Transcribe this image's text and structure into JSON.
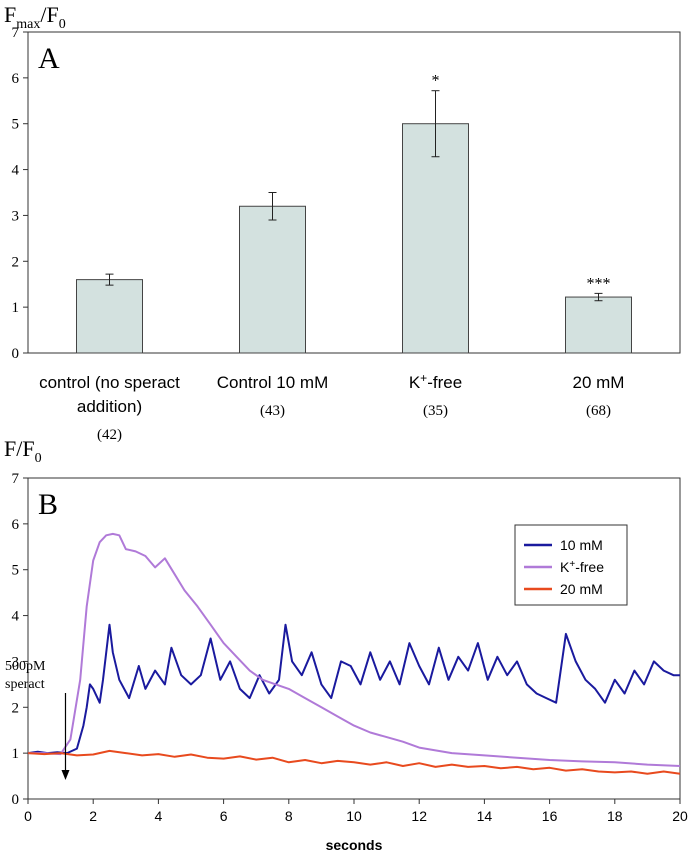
{
  "panel_a": {
    "ylabel_main": "F",
    "ylabel_sub": "max",
    "ylabel_rest": "/F",
    "ylabel_zero": "0",
    "panel_label": "A"
  },
  "panel_b": {
    "ylabel_main": "F/F",
    "ylabel_zero": "0",
    "panel_label": "B",
    "annotation_line1": "500pM",
    "annotation_line2": "speract"
  },
  "chart_data": [
    {
      "type": "bar",
      "panel": "A",
      "categories": [
        {
          "line1": "control (no speract",
          "line2": "addition)",
          "n": "(42)"
        },
        {
          "line1": "Control 10 mM",
          "line2": "",
          "n": "(43)"
        },
        {
          "line1": "K",
          "sup": "+",
          "rest": "-free",
          "line2": "",
          "n": "(35)"
        },
        {
          "line1": "20 mM",
          "line2": "",
          "n": "(68)"
        }
      ],
      "values": [
        1.6,
        3.2,
        5.0,
        1.22
      ],
      "errors": [
        0.12,
        0.3,
        0.72,
        0.08
      ],
      "significance": [
        "",
        "",
        "*",
        "***"
      ],
      "ylim": [
        0,
        7
      ],
      "yticks": [
        "0",
        "1",
        "2",
        "3",
        "4",
        "5",
        "6",
        "7"
      ],
      "bar_color": "#d3e1df"
    },
    {
      "type": "line",
      "panel": "B",
      "xlabel": "seconds",
      "xlim": [
        0,
        20
      ],
      "ylim": [
        0,
        7
      ],
      "xticks": [
        "0",
        "2",
        "4",
        "6",
        "8",
        "10",
        "12",
        "14",
        "16",
        "18",
        "20"
      ],
      "yticks": [
        "0",
        "1",
        "2",
        "3",
        "4",
        "5",
        "6",
        "7"
      ],
      "legend_position": "top-right",
      "annotation_x": 1.15,
      "series": [
        {
          "name": "10 mM",
          "color": "#1a1a9e",
          "x": [
            0,
            0.3,
            0.6,
            0.9,
            1.2,
            1.5,
            1.7,
            1.8,
            1.9,
            2.0,
            2.2,
            2.3,
            2.5,
            2.6,
            2.8,
            3.1,
            3.4,
            3.6,
            3.9,
            4.2,
            4.4,
            4.7,
            5.0,
            5.3,
            5.6,
            5.9,
            6.2,
            6.5,
            6.8,
            7.1,
            7.4,
            7.7,
            7.9,
            8.1,
            8.4,
            8.7,
            9.0,
            9.3,
            9.6,
            9.9,
            10.2,
            10.5,
            10.8,
            11.1,
            11.4,
            11.7,
            12.0,
            12.3,
            12.6,
            12.9,
            13.2,
            13.5,
            13.8,
            14.1,
            14.4,
            14.7,
            15.0,
            15.3,
            15.6,
            15.9,
            16.2,
            16.5,
            16.8,
            17.1,
            17.4,
            17.7,
            18.0,
            18.3,
            18.6,
            18.9,
            19.2,
            19.5,
            19.8,
            20.0
          ],
          "values": [
            1.0,
            1.03,
            1.0,
            1.02,
            1.0,
            1.1,
            1.6,
            2.0,
            2.5,
            2.4,
            2.1,
            2.6,
            3.8,
            3.2,
            2.6,
            2.2,
            2.9,
            2.4,
            2.8,
            2.5,
            3.3,
            2.7,
            2.5,
            2.7,
            3.5,
            2.6,
            3.0,
            2.4,
            2.2,
            2.7,
            2.3,
            2.6,
            3.8,
            3.0,
            2.7,
            3.2,
            2.5,
            2.2,
            3.0,
            2.9,
            2.5,
            3.2,
            2.6,
            3.0,
            2.5,
            3.4,
            2.9,
            2.5,
            3.3,
            2.6,
            3.1,
            2.8,
            3.4,
            2.6,
            3.1,
            2.7,
            3.0,
            2.5,
            2.3,
            2.2,
            2.1,
            3.6,
            3.0,
            2.6,
            2.4,
            2.1,
            2.6,
            2.3,
            2.8,
            2.5,
            3.0,
            2.8,
            2.7,
            2.7
          ]
        },
        {
          "name": "K+-free",
          "color": "#b07ad8",
          "x": [
            0,
            0.5,
            1.0,
            1.3,
            1.6,
            1.8,
            2.0,
            2.2,
            2.4,
            2.6,
            2.8,
            3.0,
            3.3,
            3.6,
            3.9,
            4.2,
            4.5,
            4.8,
            5.2,
            5.6,
            6.0,
            6.4,
            6.8,
            7.2,
            7.6,
            8.0,
            8.5,
            9.0,
            9.5,
            10.0,
            10.5,
            11.0,
            11.5,
            12.0,
            13.0,
            14.0,
            15.0,
            16.0,
            17.0,
            18.0,
            19.0,
            20.0
          ],
          "values": [
            1.0,
            1.0,
            0.98,
            1.3,
            2.6,
            4.2,
            5.2,
            5.6,
            5.75,
            5.78,
            5.75,
            5.45,
            5.4,
            5.3,
            5.05,
            5.25,
            4.9,
            4.55,
            4.2,
            3.8,
            3.4,
            3.1,
            2.8,
            2.6,
            2.5,
            2.4,
            2.2,
            2.0,
            1.8,
            1.6,
            1.45,
            1.35,
            1.25,
            1.12,
            1.0,
            0.95,
            0.9,
            0.85,
            0.82,
            0.8,
            0.75,
            0.72
          ]
        },
        {
          "name": "20 mM",
          "color": "#e84a1e",
          "x": [
            0,
            0.5,
            1.0,
            1.5,
            2.0,
            2.5,
            3.0,
            3.5,
            4.0,
            4.5,
            5.0,
            5.5,
            6.0,
            6.5,
            7.0,
            7.5,
            8.0,
            8.5,
            9.0,
            9.5,
            10.0,
            10.5,
            11.0,
            11.5,
            12.0,
            12.5,
            13.0,
            13.5,
            14.0,
            14.5,
            15.0,
            15.5,
            16.0,
            16.5,
            17.0,
            17.5,
            18.0,
            18.5,
            19.0,
            19.5,
            20.0
          ],
          "values": [
            1.0,
            0.98,
            1.0,
            0.95,
            0.97,
            1.05,
            1.0,
            0.95,
            0.98,
            0.92,
            0.97,
            0.9,
            0.88,
            0.93,
            0.86,
            0.9,
            0.8,
            0.85,
            0.78,
            0.83,
            0.8,
            0.75,
            0.8,
            0.72,
            0.78,
            0.7,
            0.75,
            0.7,
            0.72,
            0.67,
            0.7,
            0.65,
            0.68,
            0.62,
            0.65,
            0.6,
            0.58,
            0.6,
            0.55,
            0.6,
            0.55
          ]
        }
      ]
    }
  ]
}
